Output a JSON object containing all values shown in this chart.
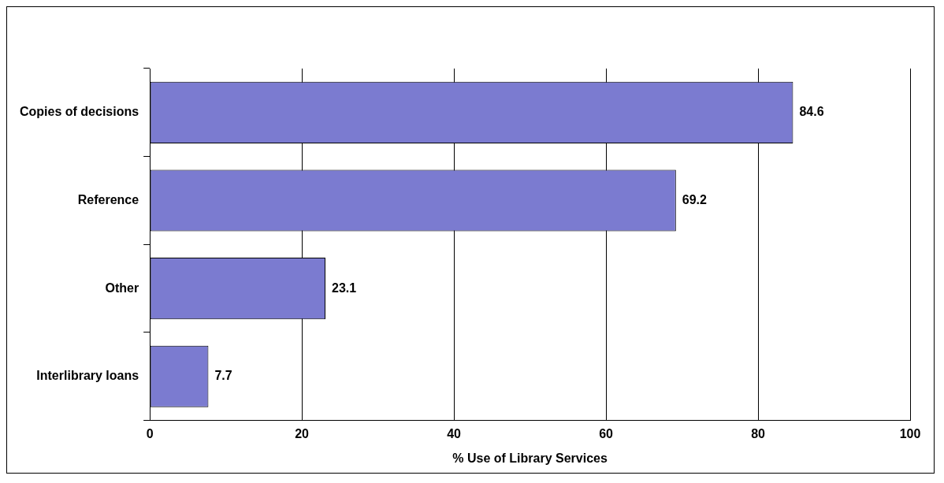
{
  "chart_data": {
    "type": "bar",
    "orientation": "horizontal",
    "xlabel": "% Use of Library Services",
    "categories": [
      "Copies of decisions",
      "Reference",
      "Other",
      "Interlibrary loans"
    ],
    "values": [
      84.6,
      69.2,
      23.1,
      7.7
    ],
    "color": "#7b7bd0",
    "xlim": [
      0,
      100
    ],
    "xticks": [
      0,
      20,
      40,
      60,
      80,
      100
    ],
    "grid": "x",
    "data_labels": true,
    "legend": false
  }
}
